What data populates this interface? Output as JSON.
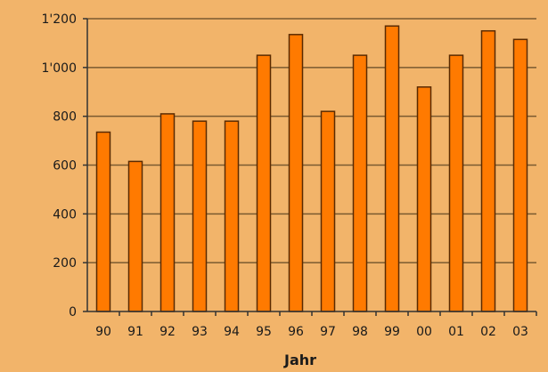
{
  "chart_data": {
    "type": "bar",
    "title": "",
    "xlabel": "Jahr",
    "ylabel": "",
    "categories": [
      "90",
      "91",
      "92",
      "93",
      "94",
      "95",
      "96",
      "97",
      "98",
      "99",
      "00",
      "01",
      "02",
      "03"
    ],
    "values": [
      735,
      615,
      810,
      780,
      780,
      1050,
      1135,
      820,
      1050,
      1170,
      920,
      1050,
      1150,
      1115
    ],
    "ylim": [
      0,
      1200
    ],
    "yticks": [
      0,
      200,
      400,
      600,
      800,
      1000,
      1200
    ],
    "ytick_labels": [
      "0",
      "200",
      "400",
      "600",
      "800",
      "1'000",
      "1'200"
    ],
    "grid": true,
    "legend": "none",
    "colors": {
      "bar_fill": "#ff7a00",
      "bar_stroke": "#5a2a00",
      "gridline": "#7a5a30",
      "background": "#f2b46a"
    }
  }
}
